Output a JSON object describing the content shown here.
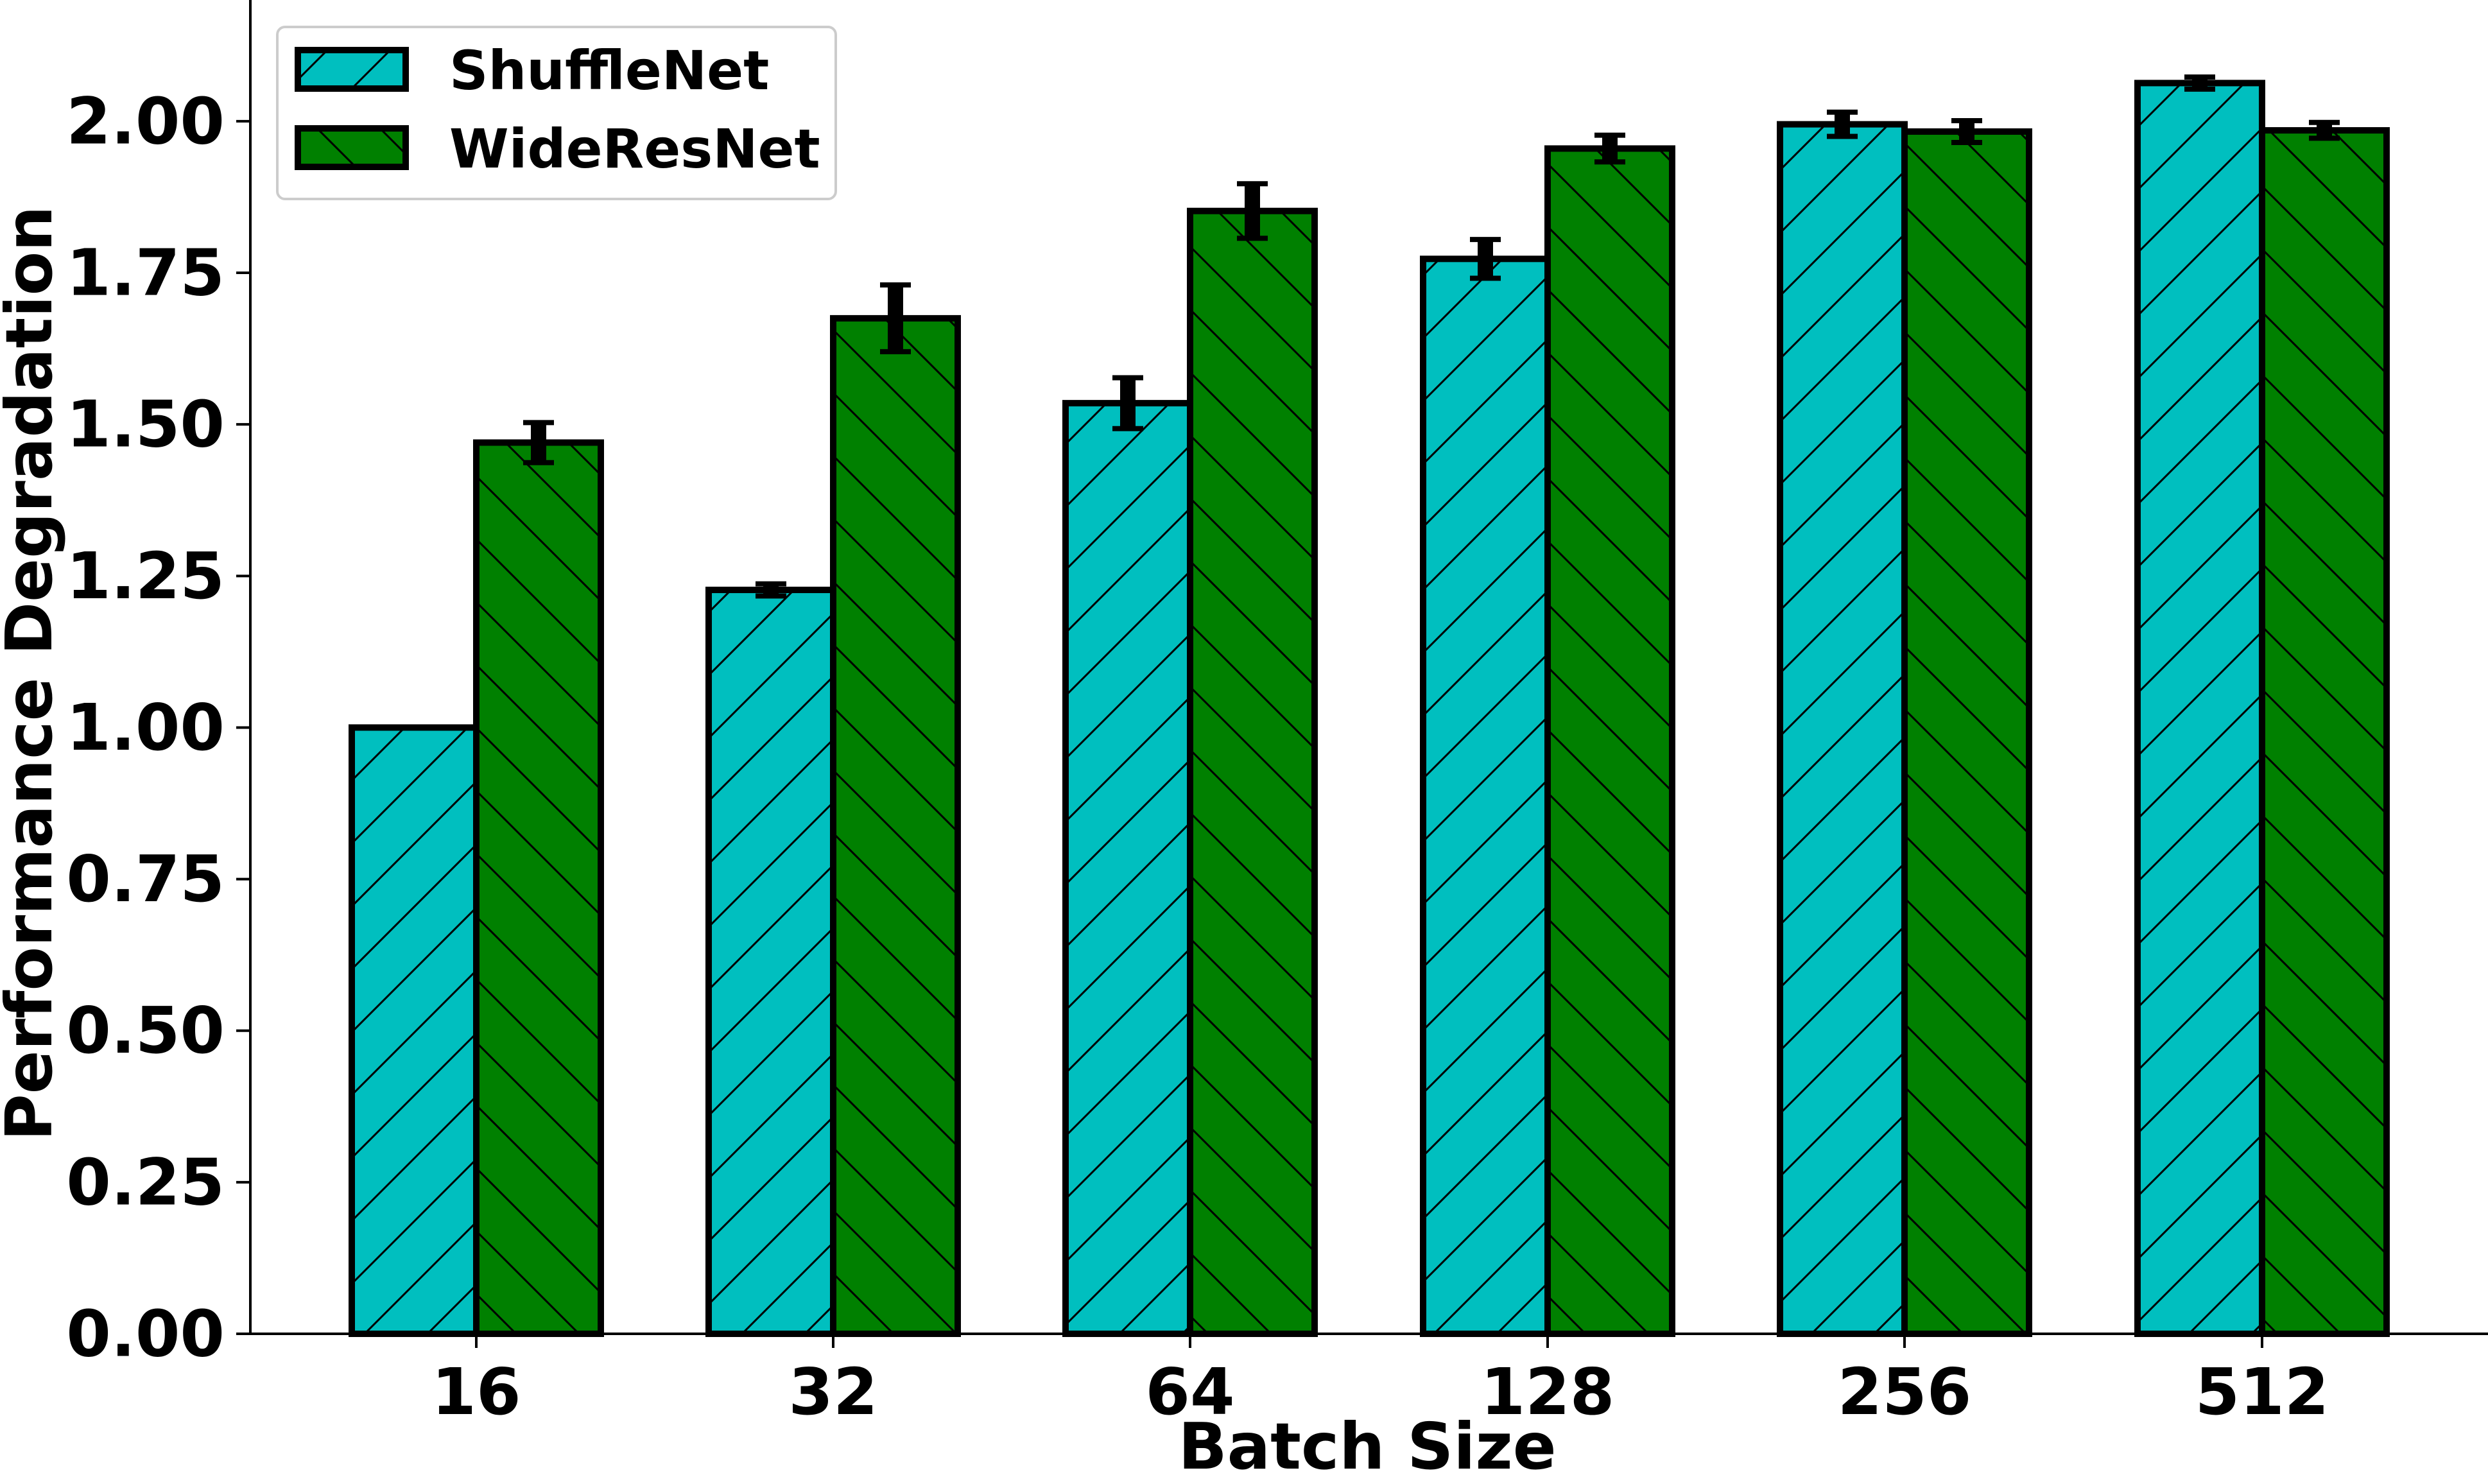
{
  "chart_data": {
    "type": "bar",
    "xlabel": "Batch Size",
    "ylabel": "Performance Degradation",
    "categories": [
      "16",
      "32",
      "64",
      "128",
      "256",
      "512"
    ],
    "ylim": [
      0,
      2.2
    ],
    "yticks": [
      "0.00",
      "0.25",
      "0.50",
      "0.75",
      "1.00",
      "1.25",
      "1.50",
      "1.75",
      "2.00"
    ],
    "series": [
      {
        "name": "ShuffleNet",
        "color": "#00bfbf",
        "hatch": "/",
        "values": [
          1.0,
          1.227,
          1.535,
          1.773,
          1.995,
          2.063
        ],
        "errors": [
          0.0,
          0.01,
          0.042,
          0.032,
          0.02,
          0.01
        ]
      },
      {
        "name": "WideResNet",
        "color": "#008000",
        "hatch": "\\",
        "values": [
          1.47,
          1.675,
          1.852,
          1.955,
          1.983,
          1.985
        ],
        "errors": [
          0.033,
          0.055,
          0.045,
          0.022,
          0.018,
          0.013
        ]
      }
    ],
    "legend_position": "top-left",
    "grid": false
  }
}
